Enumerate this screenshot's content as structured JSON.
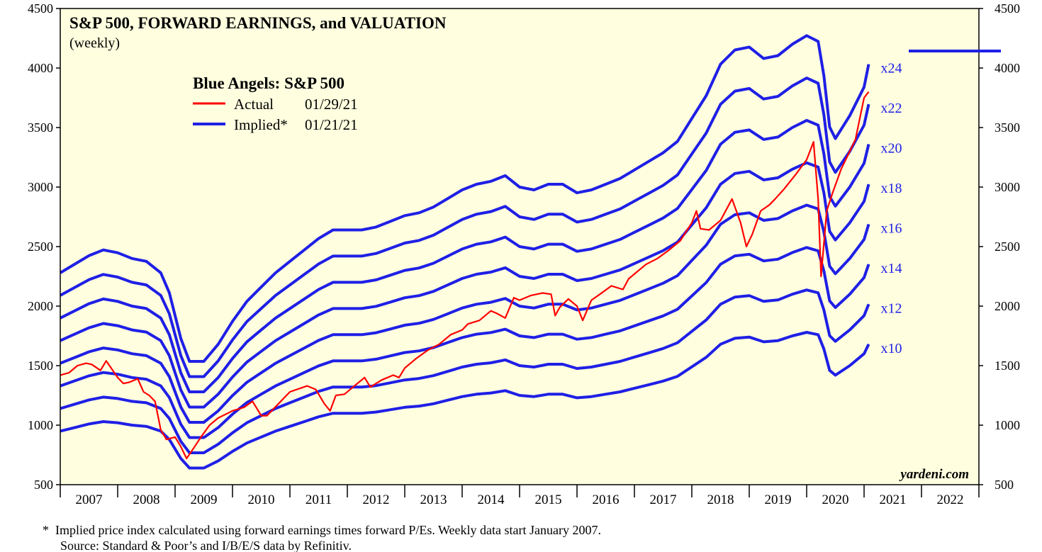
{
  "colors": {
    "background": "#ffffe0",
    "frame": "#000000",
    "actual": "#ff0000",
    "implied": "#1f1fe6",
    "multiple_label": "#1f1fe6"
  },
  "footnotes": {
    "line1": "*  Implied price index calculated using forward earnings times forward P/Es. Weekly data start January 2007.",
    "line2": "Source: Standard & Poor’s and I/B/E/S data by Refinitiv."
  },
  "chart_data": {
    "type": "line",
    "title": "S&P 500, FORWARD EARNINGS, and VALUATION",
    "subtitle": "(weekly)",
    "watermark": "yardeni.com",
    "legend": {
      "title": "Blue Angels: S&P 500",
      "position": "top-left",
      "entries": [
        {
          "name": "Actual",
          "date": "01/29/21",
          "color": "#ff0000"
        },
        {
          "name": "Implied*",
          "date": "01/21/21",
          "color": "#1f1fe6"
        }
      ]
    },
    "x_range": [
      2007.0,
      2023.0
    ],
    "x_tick_labels": [
      "2007",
      "2008",
      "2009",
      "2010",
      "2011",
      "2012",
      "2013",
      "2014",
      "2015",
      "2016",
      "2017",
      "2018",
      "2019",
      "2020",
      "2021",
      "2022"
    ],
    "ylim": [
      500,
      4500
    ],
    "y_ticks": [
      500,
      1000,
      1500,
      2000,
      2500,
      3000,
      3500,
      4000,
      4500
    ],
    "multiples": [
      10,
      12,
      14,
      16,
      18,
      20,
      22,
      24
    ],
    "multiple_labels": [
      "x10",
      "x12",
      "x14",
      "x16",
      "x18",
      "x20",
      "x22",
      "x24"
    ],
    "forward_earnings": {
      "x": [
        2007.0,
        2007.25,
        2007.5,
        2007.75,
        2008.0,
        2008.25,
        2008.5,
        2008.75,
        2008.9,
        2009.1,
        2009.25,
        2009.5,
        2009.75,
        2010.0,
        2010.25,
        2010.5,
        2010.75,
        2011.0,
        2011.25,
        2011.5,
        2011.75,
        2012.0,
        2012.25,
        2012.5,
        2012.75,
        2013.0,
        2013.25,
        2013.5,
        2013.75,
        2014.0,
        2014.25,
        2014.5,
        2014.75,
        2015.0,
        2015.25,
        2015.5,
        2015.75,
        2016.0,
        2016.25,
        2016.5,
        2016.75,
        2017.0,
        2017.25,
        2017.5,
        2017.75,
        2018.0,
        2018.25,
        2018.5,
        2018.75,
        2019.0,
        2019.25,
        2019.5,
        2019.75,
        2020.0,
        2020.2,
        2020.3,
        2020.4,
        2020.5,
        2020.75,
        2021.0,
        2021.08
      ],
      "values": [
        95,
        98,
        101,
        103,
        102,
        100,
        99,
        95,
        88,
        72,
        64,
        64,
        70,
        78,
        85,
        90,
        95,
        99,
        103,
        107,
        110,
        110,
        110,
        111,
        113,
        115,
        116,
        118,
        121,
        124,
        126,
        127,
        129,
        125,
        124,
        126,
        126,
        123,
        124,
        126,
        128,
        131,
        134,
        137,
        141,
        149,
        157,
        168,
        173,
        174,
        170,
        171,
        175,
        178,
        176,
        164,
        146,
        142,
        150,
        160,
        168
      ],
      "unit": "implied price = multiple x forward earnings"
    },
    "actual": {
      "x": [
        2007.0,
        2007.15,
        2007.3,
        2007.45,
        2007.55,
        2007.7,
        2007.8,
        2008.0,
        2008.1,
        2008.2,
        2008.35,
        2008.45,
        2008.55,
        2008.65,
        2008.75,
        2008.85,
        2009.0,
        2009.1,
        2009.2,
        2009.3,
        2009.45,
        2009.6,
        2009.75,
        2010.0,
        2010.2,
        2010.35,
        2010.5,
        2010.6,
        2010.8,
        2011.0,
        2011.3,
        2011.45,
        2011.6,
        2011.7,
        2011.8,
        2011.95,
        2012.1,
        2012.3,
        2012.4,
        2012.6,
        2012.8,
        2012.9,
        2013.0,
        2013.2,
        2013.4,
        2013.6,
        2013.8,
        2014.0,
        2014.1,
        2014.3,
        2014.5,
        2014.6,
        2014.75,
        2014.9,
        2015.0,
        2015.2,
        2015.4,
        2015.55,
        2015.62,
        2015.7,
        2015.85,
        2016.0,
        2016.1,
        2016.25,
        2016.4,
        2016.6,
        2016.8,
        2016.9,
        2017.0,
        2017.2,
        2017.4,
        2017.6,
        2017.8,
        2018.0,
        2018.08,
        2018.15,
        2018.3,
        2018.5,
        2018.7,
        2018.85,
        2018.95,
        2019.05,
        2019.2,
        2019.35,
        2019.45,
        2019.6,
        2019.8,
        2020.0,
        2020.12,
        2020.2,
        2020.25,
        2020.35,
        2020.45,
        2020.6,
        2020.75,
        2020.85,
        2021.0,
        2021.08
      ],
      "values": [
        1420,
        1440,
        1500,
        1520,
        1510,
        1460,
        1540,
        1400,
        1350,
        1360,
        1390,
        1280,
        1250,
        1200,
        960,
        880,
        900,
        820,
        720,
        790,
        900,
        1000,
        1060,
        1120,
        1150,
        1200,
        1080,
        1080,
        1180,
        1280,
        1330,
        1300,
        1180,
        1120,
        1250,
        1260,
        1320,
        1400,
        1320,
        1380,
        1420,
        1400,
        1480,
        1560,
        1630,
        1680,
        1760,
        1800,
        1850,
        1880,
        1960,
        1940,
        1900,
        2070,
        2050,
        2090,
        2110,
        2100,
        1920,
        1990,
        2060,
        2000,
        1880,
        2050,
        2100,
        2170,
        2140,
        2230,
        2270,
        2350,
        2400,
        2470,
        2550,
        2700,
        2800,
        2650,
        2640,
        2720,
        2900,
        2700,
        2500,
        2600,
        2800,
        2850,
        2900,
        2980,
        3100,
        3230,
        3380,
        2900,
        2250,
        2800,
        2950,
        3150,
        3300,
        3400,
        3750,
        3800
      ]
    }
  }
}
